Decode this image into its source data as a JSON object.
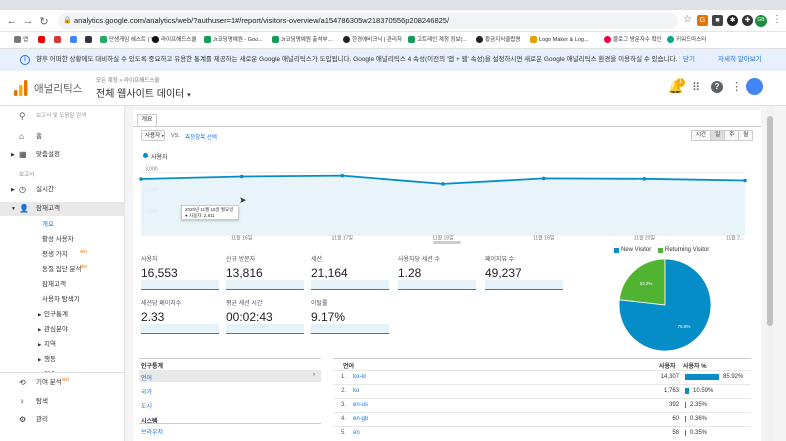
{
  "browser": {
    "url": "analytics.google.com/analytics/web/?authuser=1#/report/visitors-overview/a154786305w218370556p208246825/",
    "bookmarks": [
      "앱",
      "",
      "",
      "",
      "",
      "",
      "단생게임 헤스트 | Tr...",
      "라이프해드스쿨",
      "Jr코딩명예원 - Goo...",
      "Jr코딩명예원 출석부...",
      "한경에비크닉 | 관리자",
      "고트레인 계정 정보(...",
      "황금지식클럽명",
      "Logo Maker & Log...",
      "블로그 방문자수 확인",
      "키워드마스터"
    ]
  },
  "notice": {
    "text": "향후 어떠한 상황에도 대비하실 수 있도록 중요하고 유용한 통계를 제공하는 새로운 Google 애널리틱스가 도입됩니다. Google 애널리틱스 4 속성(이전의 '앱 + 웹' 속성)을 설정하시면 새로운 Google 애널리틱스 환경을 이용하실 수 있습니다.",
    "close": "닫기",
    "more": "자세히 알아보기"
  },
  "header": {
    "product": "애널리틱스",
    "account_breadcrumb": "모든 계정 > 라이프해드스쿨",
    "property": "전체 웹사이트 데이터",
    "notif_count": "1"
  },
  "sidebar": {
    "search_placeholder": "보고서 및 도움말 검색",
    "home": "홈",
    "customization": "맞춤설정",
    "reports_heading": "보고서",
    "realtime": "실시간",
    "audience": "잠재고객",
    "overview": "개요",
    "active_users": "활성 사용자",
    "lifetime_value": "평생 가치",
    "lifetime_beta": "베타",
    "cohort": "동질 집단 분석",
    "cohort_beta": "베타",
    "audiences": "잠재고객",
    "user_explorer": "사용자 탐색기",
    "demographics": "인구통계",
    "interests": "관심분야",
    "geo": "지역",
    "behavior": "행동",
    "tech": "기술",
    "attribution": "기여 분석",
    "attribution_beta": "베타",
    "discover": "탐색",
    "admin": "관리"
  },
  "report": {
    "tab": "개요",
    "metric_select": "사용자",
    "vs": "VS.",
    "select_metric": "측정항목 선택",
    "granularity": [
      "시간",
      "일",
      "주",
      "월"
    ],
    "active_granularity": "일",
    "legend": "사용자",
    "tooltip_date": "2020년 11월 16일 월요일",
    "tooltip_value": "● 사용자: 2,811"
  },
  "chart_data": {
    "type": "line",
    "x": [
      "11월 15일",
      "11월 16일",
      "11월 17일",
      "11월 18일",
      "11월 19일",
      "11월 20일",
      "11월 21일"
    ],
    "series": [
      {
        "name": "사용자",
        "values": [
          2690,
          2811,
          2850,
          2460,
          2720,
          2700,
          2620
        ]
      }
    ],
    "yticks": [
      "3,000",
      "2,000",
      "1,000"
    ],
    "xticks": [
      "11월 16일",
      "11월 17일",
      "11월 18일",
      "11월 19일",
      "11월 20일",
      "11월 2..."
    ],
    "ylim": [
      0,
      3400
    ]
  },
  "metrics": [
    {
      "label": "사용자",
      "value": "16,553"
    },
    {
      "label": "신규 방문자",
      "value": "13,816"
    },
    {
      "label": "세션",
      "value": "21,164"
    },
    {
      "label": "사용자당 세션 수",
      "value": "1.28"
    },
    {
      "label": "페이지뷰 수",
      "value": "49,237"
    },
    {
      "label": "세션당 페이지수",
      "value": "2.33"
    },
    {
      "label": "평균 세션 시간",
      "value": "00:02:43"
    },
    {
      "label": "이탈률",
      "value": "9.17%"
    }
  ],
  "pie": {
    "legend": [
      {
        "name": "New Visitor",
        "color": "#058dc7"
      },
      {
        "name": "Returning Visitor",
        "color": "#50b432"
      }
    ],
    "slices": [
      {
        "name": "New Visitor",
        "value": 76.8,
        "label": "76.8%"
      },
      {
        "name": "Returning Visitor",
        "value": 23.2,
        "label": "23.2%"
      }
    ]
  },
  "demographics": {
    "heading": "인구통계",
    "items": [
      "언어",
      "국가",
      "도시"
    ],
    "system_heading": "시스템",
    "system_items": [
      "브라우저"
    ]
  },
  "lang_table": {
    "col_lang": "언어",
    "col_users": "사용자",
    "col_pct": "사용자 %",
    "rows": [
      {
        "n": "1.",
        "lang": "ko-kr",
        "users": "14,307",
        "pct": "85.92%",
        "frac": 0.8592
      },
      {
        "n": "2.",
        "lang": "ko",
        "users": "1,763",
        "pct": "10.59%",
        "frac": 0.1059
      },
      {
        "n": "3.",
        "lang": "en-us",
        "users": "392",
        "pct": "2.35%",
        "frac": 0.0235
      },
      {
        "n": "4.",
        "lang": "en-gb",
        "users": "60",
        "pct": "0.36%",
        "frac": 0.0036
      },
      {
        "n": "5.",
        "lang": "en",
        "users": "58",
        "pct": "0.35%",
        "frac": 0.0035
      }
    ]
  }
}
